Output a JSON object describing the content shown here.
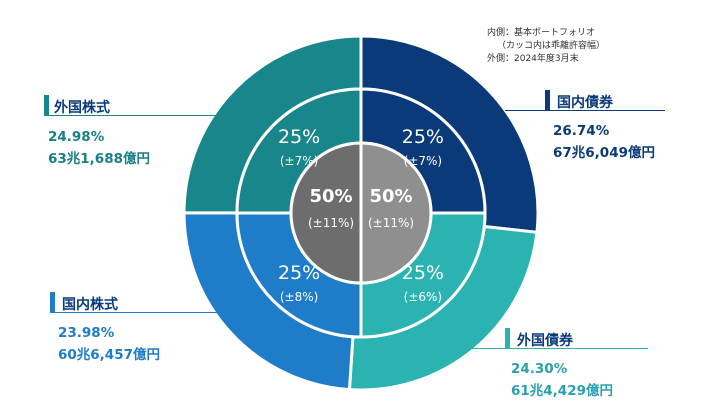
{
  "notes": {
    "inner": "内側：基本ポートフォリオ",
    "inner_sub": "（カッコ内は乖離許容幅）",
    "outer": "外側：2024年度3月末"
  },
  "colors": {
    "domestic_bonds": "#0a3a7a",
    "foreign_bonds": "#2ab3b1",
    "domestic_stocks": "#1e7cc8",
    "foreign_stocks": "#18868a",
    "center_left": "#6d6d6d",
    "center_right": "#8f8f8f"
  },
  "chart_data": {
    "type": "pie",
    "center": {
      "left": {
        "value": "50%",
        "band": "(±11%)"
      },
      "right": {
        "value": "50%",
        "band": "(±11%)"
      }
    },
    "inner_ring": [
      {
        "asset": "国内債券",
        "value": "25%",
        "band": "(±7%)"
      },
      {
        "asset": "外国債券",
        "value": "25%",
        "band": "(±6%)"
      },
      {
        "asset": "国内株式",
        "value": "25%",
        "band": "(±8%)"
      },
      {
        "asset": "外国株式",
        "value": "25%",
        "band": "(±7%)"
      }
    ],
    "outer_ring": [
      {
        "asset": "国内債券",
        "share": 26.74,
        "pct": "26.74%",
        "amount": "67兆6,049億円"
      },
      {
        "asset": "外国債券",
        "share": 24.3,
        "pct": "24.30%",
        "amount": "61兆4,429億円"
      },
      {
        "asset": "国内株式",
        "share": 23.98,
        "pct": "23.98%",
        "amount": "60兆6,457億円"
      },
      {
        "asset": "外国株式",
        "share": 24.98,
        "pct": "24.98%",
        "amount": "63兆1,688億円"
      }
    ]
  }
}
